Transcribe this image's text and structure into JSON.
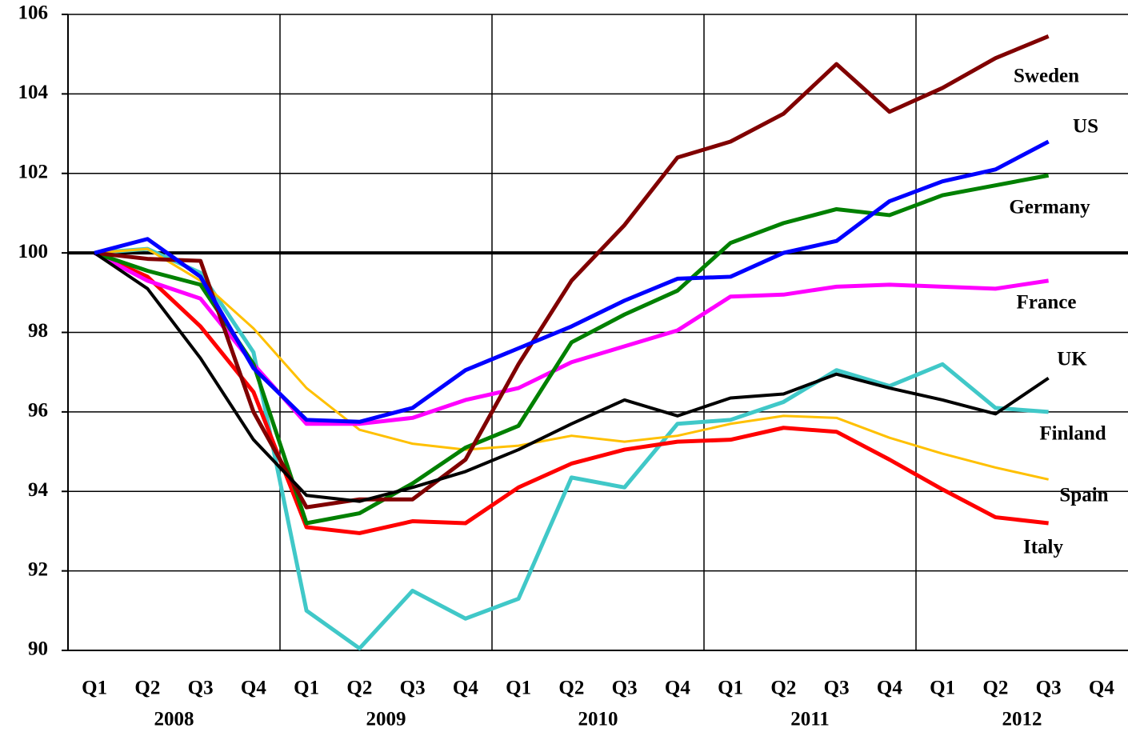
{
  "chart_data": {
    "type": "line",
    "categories": [
      "Q1",
      "Q2",
      "Q3",
      "Q4",
      "Q1",
      "Q2",
      "Q3",
      "Q4",
      "Q1",
      "Q2",
      "Q3",
      "Q4",
      "Q1",
      "Q2",
      "Q3",
      "Q4",
      "Q1",
      "Q2",
      "Q3",
      "Q4"
    ],
    "years": [
      "2008",
      "2009",
      "2010",
      "2011",
      "2012"
    ],
    "ylim": [
      90,
      106
    ],
    "yticks": [
      90,
      92,
      94,
      96,
      98,
      100,
      102,
      104,
      106
    ],
    "reference_line": 100,
    "grid": true,
    "series": [
      {
        "name": "Finland",
        "color": "#40c8c8",
        "values": [
          100,
          100.1,
          99.5,
          97.5,
          91.0,
          90.05,
          91.5,
          90.8,
          91.3,
          94.35,
          94.1,
          95.7,
          95.8,
          96.25,
          97.05,
          96.65,
          97.2,
          96.1,
          96.0,
          null
        ]
      },
      {
        "name": "Spain",
        "color": "#ffc000",
        "values": [
          100,
          100.1,
          99.3,
          98.1,
          96.6,
          95.55,
          95.2,
          95.05,
          95.15,
          95.4,
          95.25,
          95.4,
          95.7,
          95.9,
          95.85,
          95.35,
          94.95,
          94.6,
          94.3,
          null
        ]
      },
      {
        "name": "Italy",
        "color": "#ff0000",
        "values": [
          100,
          99.4,
          98.15,
          96.5,
          93.1,
          92.95,
          93.25,
          93.2,
          94.1,
          94.7,
          95.05,
          95.25,
          95.3,
          95.6,
          95.5,
          94.8,
          94.05,
          93.35,
          93.2,
          null
        ]
      },
      {
        "name": "France",
        "color": "#ff00ff",
        "values": [
          100,
          99.3,
          98.85,
          97.2,
          95.7,
          95.7,
          95.85,
          96.3,
          96.6,
          97.25,
          97.65,
          98.05,
          98.9,
          98.95,
          99.15,
          99.2,
          99.15,
          99.1,
          99.3,
          null
        ]
      },
      {
        "name": "Germany",
        "color": "#008000",
        "values": [
          100,
          99.55,
          99.2,
          97.2,
          93.2,
          93.45,
          94.2,
          95.1,
          95.65,
          97.75,
          98.45,
          99.05,
          100.25,
          100.75,
          101.1,
          100.95,
          101.45,
          101.7,
          101.95,
          null
        ]
      },
      {
        "name": "Sweden",
        "color": "#800000",
        "values": [
          100,
          99.85,
          99.8,
          96.0,
          93.6,
          93.8,
          93.8,
          94.8,
          97.2,
          99.3,
          100.7,
          102.4,
          102.8,
          103.5,
          104.75,
          103.55,
          104.15,
          104.9,
          105.45,
          null
        ]
      },
      {
        "name": "UK",
        "color": "#000000",
        "values": [
          100,
          99.1,
          97.35,
          95.3,
          93.9,
          93.75,
          94.1,
          94.5,
          95.05,
          95.7,
          96.3,
          95.9,
          96.35,
          96.45,
          96.95,
          96.6,
          96.3,
          95.95,
          96.85,
          null
        ]
      },
      {
        "name": "US",
        "color": "#0000ff",
        "values": [
          100,
          100.35,
          99.4,
          97.1,
          95.8,
          95.75,
          96.1,
          97.05,
          97.6,
          98.15,
          98.8,
          99.35,
          99.4,
          100.0,
          100.3,
          101.3,
          101.8,
          102.1,
          102.8,
          null
        ]
      }
    ]
  }
}
